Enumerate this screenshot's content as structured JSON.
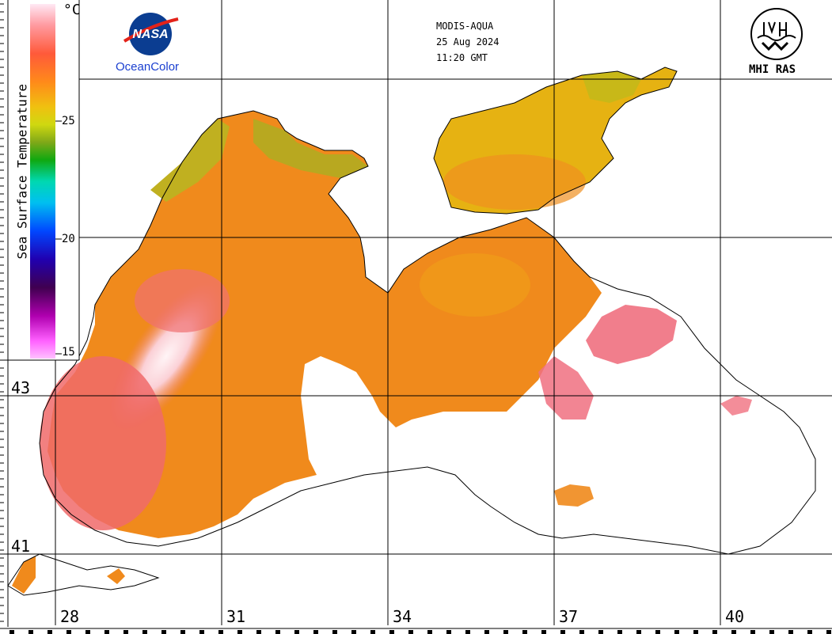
{
  "header": {
    "sensor": "MODIS-AQUA",
    "date": "25 Aug 2024",
    "time": "11:20 GMT"
  },
  "logos": {
    "nasa_text": "NASA",
    "oceancolor": "OceanColor",
    "mhi": "MHI RAS"
  },
  "legend": {
    "title": "Sea Surface Temperature",
    "unit": "°C",
    "ticks": [
      "25",
      "20",
      "15"
    ],
    "colors": [
      "#ffe8f4",
      "#ff9e9e",
      "#ff6a3a",
      "#ff8a1a",
      "#f2b010",
      "#d8d810",
      "#8ab818",
      "#1ca818",
      "#00d8a8",
      "#00c8f0",
      "#0048ff",
      "#1a00a8",
      "#5a0060",
      "#b800b0",
      "#ff40ff",
      "#ffb0ff"
    ]
  },
  "grid": {
    "longitudes": [
      "28",
      "31",
      "34",
      "37",
      "40"
    ],
    "latitudes": [
      "43",
      "41"
    ]
  },
  "colors": {
    "sea_warm": "#f08a1c",
    "sea_hot": "#f06a6a",
    "sea_core": "#fbe8ee",
    "sea_cool": "#d6c012",
    "shelf": "#9aa828",
    "coast": "#000000",
    "grid": "#000000"
  }
}
